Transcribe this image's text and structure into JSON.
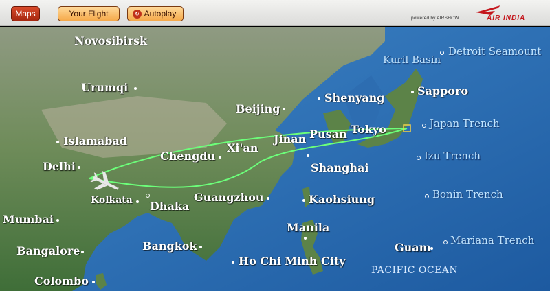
{
  "toolbar": {
    "maps_label": "Maps",
    "your_flight_label": "Your Flight",
    "autoplay_label": "Autoplay",
    "powered_by": "powered by AIRSHOW",
    "brand": "AIR INDIA"
  },
  "colors": {
    "route": "#6cff7a",
    "ocean": "#2c6fb6",
    "land": "#5f8a4a"
  },
  "cities": [
    {
      "name": "Novosibirsk"
    },
    {
      "name": "Urumqi"
    },
    {
      "name": "Islamabad"
    },
    {
      "name": "Delhi"
    },
    {
      "name": "Kolkata"
    },
    {
      "name": "Dhaka"
    },
    {
      "name": "Mumbai"
    },
    {
      "name": "Bangalore"
    },
    {
      "name": "Colombo"
    },
    {
      "name": "Chengdu"
    },
    {
      "name": "Xi'an"
    },
    {
      "name": "Beijing"
    },
    {
      "name": "Jinan"
    },
    {
      "name": "Shenyang"
    },
    {
      "name": "Pusan"
    },
    {
      "name": "Tokyo"
    },
    {
      "name": "Sapporo"
    },
    {
      "name": "Shanghai"
    },
    {
      "name": "Guangzhou"
    },
    {
      "name": "Kaohsiung"
    },
    {
      "name": "Manila"
    },
    {
      "name": "Bangkok"
    },
    {
      "name": "Ho Chi Minh City"
    },
    {
      "name": "Guam"
    }
  ],
  "features": [
    {
      "name": "Kuril Basin"
    },
    {
      "name": "Detroit Seamount"
    },
    {
      "name": "Japan Trench"
    },
    {
      "name": "Izu Trench"
    },
    {
      "name": "Bonin Trench"
    },
    {
      "name": "Mariana Trench"
    },
    {
      "name": "PACIFIC OCEAN"
    }
  ]
}
